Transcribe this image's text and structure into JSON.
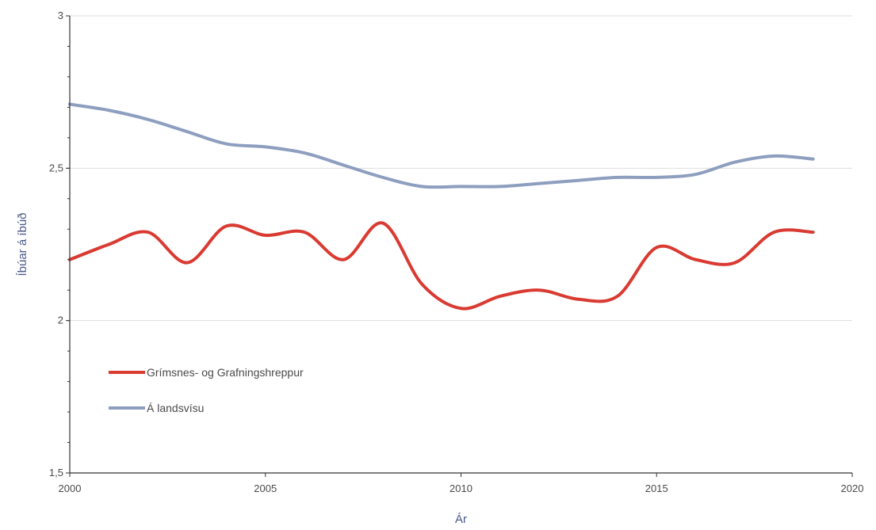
{
  "chart_data": {
    "type": "line",
    "title": "",
    "xlabel": "Ár",
    "ylabel": "Íbúar á íbúð",
    "xlim": [
      2000,
      2020
    ],
    "ylim": [
      1.5,
      3
    ],
    "x_ticks": [
      {
        "value": 2000,
        "label": "2000"
      },
      {
        "value": 2005,
        "label": "2005"
      },
      {
        "value": 2010,
        "label": "2010"
      },
      {
        "value": 2015,
        "label": "2015"
      },
      {
        "value": 2020,
        "label": "2020"
      }
    ],
    "y_ticks": [
      {
        "value": 1.5,
        "label": "1,5"
      },
      {
        "value": 2,
        "label": "2"
      },
      {
        "value": 2.5,
        "label": "2,5"
      },
      {
        "value": 3,
        "label": "3"
      }
    ],
    "grid": "horizontal",
    "legend_position": "lower-left",
    "x": [
      2000,
      2001,
      2002,
      2003,
      2004,
      2005,
      2006,
      2007,
      2008,
      2009,
      2010,
      2011,
      2012,
      2013,
      2014,
      2015,
      2016,
      2017,
      2018,
      2019
    ],
    "series": [
      {
        "name": "Grímsnes- og Grafningshreppur",
        "color": "#d93a32",
        "values": [
          2.2,
          2.25,
          2.29,
          2.19,
          2.31,
          2.28,
          2.29,
          2.2,
          2.32,
          2.12,
          2.04,
          2.08,
          2.1,
          2.07,
          2.08,
          2.24,
          2.2,
          2.19,
          2.29,
          2.29
        ]
      },
      {
        "name": "Á landsvísu",
        "color": "#8e9ebf",
        "values": [
          2.71,
          2.69,
          2.66,
          2.62,
          2.58,
          2.57,
          2.55,
          2.51,
          2.47,
          2.44,
          2.44,
          2.44,
          2.45,
          2.46,
          2.47,
          2.47,
          2.48,
          2.52,
          2.54,
          2.53
        ]
      }
    ]
  }
}
